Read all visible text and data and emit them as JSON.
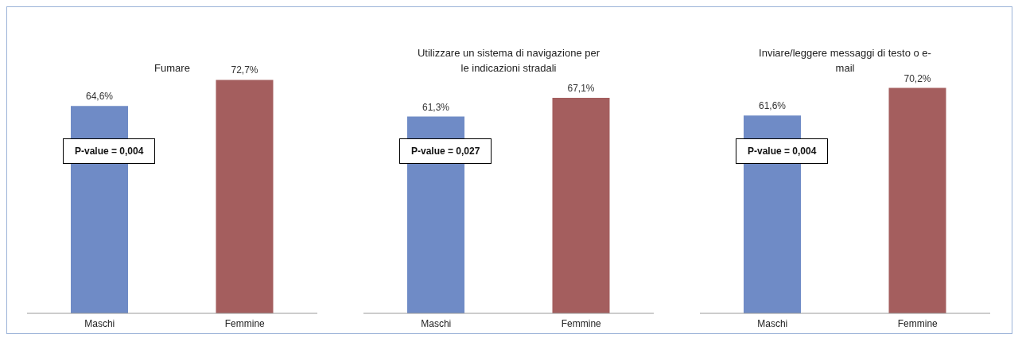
{
  "chart_data": [
    {
      "type": "bar",
      "title": "Fumare",
      "categories": [
        "Maschi",
        "Femmine"
      ],
      "values": [
        64.6,
        72.7
      ],
      "colors": [
        "#6f8bc6",
        "#a45e5e"
      ],
      "value_labels": [
        "64,6%",
        "72,7%"
      ],
      "tick_labels": "x",
      "annotations": [
        "P-value = 0,004"
      ]
    },
    {
      "type": "bar",
      "title": "Utilizzare un sistema di navigazione per le indicazioni stradali",
      "categories": [
        "Maschi",
        "Femmine"
      ],
      "values": [
        61.3,
        67.1
      ],
      "colors": [
        "#6f8bc6",
        "#a45e5e"
      ],
      "value_labels": [
        "61,3%",
        "67,1%"
      ],
      "tick_labels": "x",
      "annotations": [
        "P-value = 0,027"
      ]
    },
    {
      "type": "bar",
      "title": "Inviare/leggere messaggi di testo o e-mail",
      "categories": [
        "Maschi",
        "Femmine"
      ],
      "values": [
        61.6,
        70.2
      ],
      "colors": [
        "#6f8bc6",
        "#a45e5e"
      ],
      "value_labels": [
        "61,6%",
        "70,2%"
      ],
      "tick_labels": "x",
      "annotations": [
        "P-value = 0,004"
      ]
    }
  ]
}
